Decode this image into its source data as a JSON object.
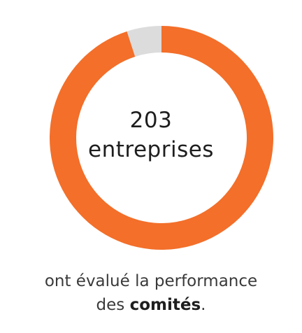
{
  "chart_data": {
    "type": "pie",
    "variant": "donut",
    "center_value": "203",
    "center_unit": "entreprises",
    "slices": [
      {
        "value": 95,
        "color": "#f36f2a"
      },
      {
        "value": 5,
        "color": "#dcdcdc"
      }
    ]
  },
  "caption": {
    "line1": "ont évalué la performance",
    "line2_prefix": "des ",
    "line2_strong": "comités",
    "line2_suffix": "."
  },
  "colors": {
    "accent": "#f36f2a",
    "remainder": "#dcdcdc",
    "text": "#1e1e1e"
  }
}
